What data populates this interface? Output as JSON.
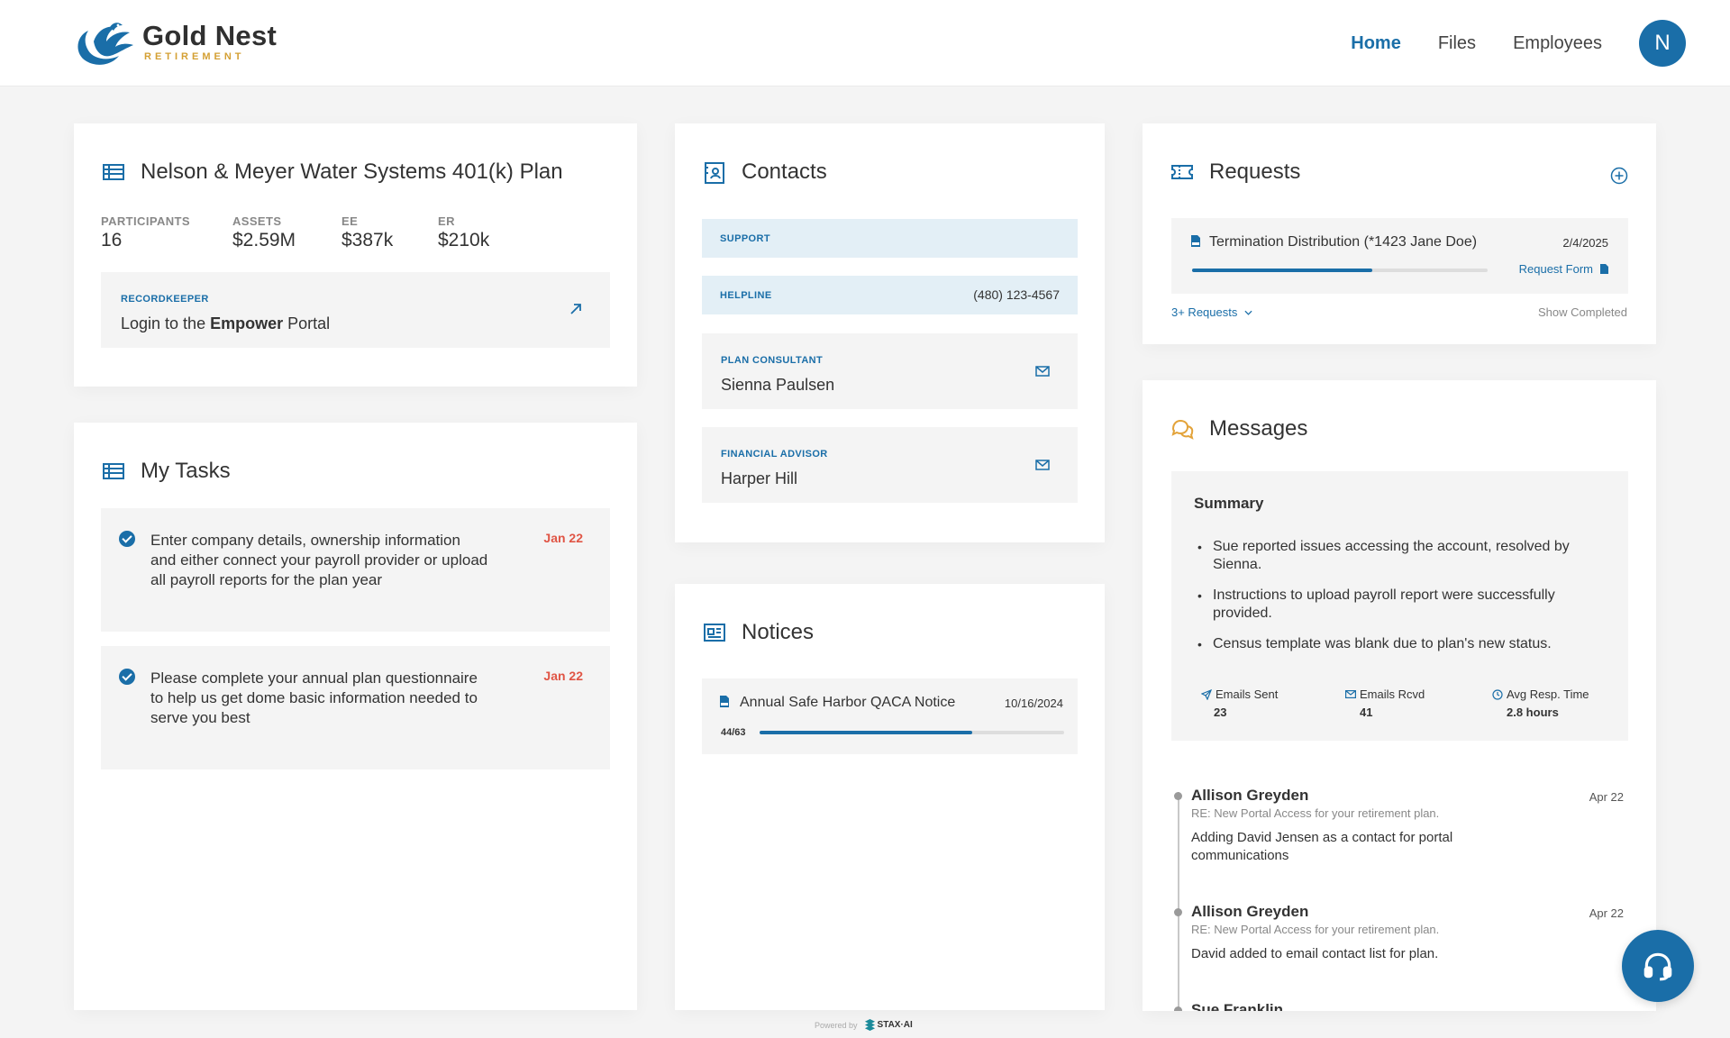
{
  "header": {
    "brand_name": "Gold Nest",
    "brand_sub": "RETIREMENT",
    "nav": [
      "Home",
      "Files",
      "Employees"
    ],
    "avatar_initial": "N"
  },
  "plan": {
    "title": "Nelson & Meyer Water Systems 401(k) Plan",
    "stats": [
      {
        "label": "PARTICIPANTS",
        "value": "16"
      },
      {
        "label": "ASSETS",
        "value": "$2.59M"
      },
      {
        "label": "EE",
        "value": "$387k"
      },
      {
        "label": "ER",
        "value": "$210k"
      }
    ],
    "recordkeeper_label": "RECORDKEEPER",
    "login_prefix": "Login to the",
    "login_brand": "Empower",
    "login_suffix": "Portal"
  },
  "tasks": {
    "title": "My Tasks",
    "items": [
      {
        "text": "Enter company details, ownership information and either connect your payroll provider or upload all payroll reports for the plan year",
        "date": "Jan 22"
      },
      {
        "text": "Please complete your annual plan questionnaire to help us get dome basic information needed to serve you best",
        "date": "Jan 22"
      }
    ]
  },
  "contacts": {
    "title": "Contacts",
    "support_label": "SUPPORT",
    "helpline_label": "HELPLINE",
    "helpline_phone": "(480) 123-4567",
    "consultant_label": "PLAN CONSULTANT",
    "consultant_name": "Sienna Paulsen",
    "advisor_label": "FINANCIAL ADVISOR",
    "advisor_name": "Harper Hill"
  },
  "notices": {
    "title": "Notices",
    "item_title": "Annual Safe Harbor QACA Notice",
    "item_date": "10/16/2024",
    "item_count": "44/63",
    "item_progress": 0.698
  },
  "requests": {
    "title": "Requests",
    "item_title": "Termination Distribution (*1423 Jane Doe)",
    "item_date": "2/4/2025",
    "item_progress": 0.61,
    "request_form": "Request Form",
    "more_requests": "3+ Requests",
    "show_completed": "Show Completed"
  },
  "messages": {
    "title": "Messages",
    "summary_title": "Summary",
    "summary_bullets": [
      "Sue reported issues accessing the account, resolved by Sienna.",
      "Instructions to upload payroll report were successfully provided.",
      "Census template was blank due to plan's new status."
    ],
    "stats": [
      {
        "label": "Emails Sent",
        "value": "23"
      },
      {
        "label": "Emails Rcvd",
        "value": "41"
      },
      {
        "label": "Avg Resp. Time",
        "value": "2.8 hours"
      }
    ],
    "items": [
      {
        "name": "Allison Greyden",
        "subject": "RE: New Portal Access for your retirement plan.",
        "body": "Adding David Jensen as a contact for portal communications",
        "date": "Apr 22"
      },
      {
        "name": "Allison Greyden",
        "subject": "RE: New Portal Access for your retirement plan.",
        "body": "David added to email contact list for plan.",
        "date": "Apr 22"
      },
      {
        "name": "Sue Franklin",
        "subject": "",
        "body": "",
        "date": ""
      }
    ]
  },
  "footer": {
    "powered_by": "Powered by",
    "powered_brand": "STAX·AI"
  },
  "colors": {
    "accent": "#1a6ea8",
    "gold": "#d4a034",
    "due": "#e05545"
  }
}
